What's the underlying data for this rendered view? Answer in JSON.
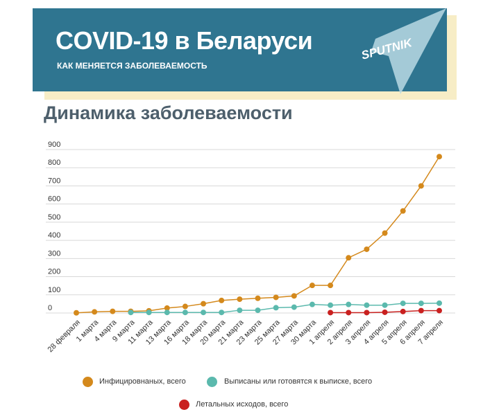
{
  "header": {
    "title": "COVID-19 в Беларуси",
    "subtitle": "КАК МЕНЯЕТСЯ ЗАБОЛЕВАЕМОСТЬ",
    "logo_text": "SPUTNIK"
  },
  "colors": {
    "banner": "#2f7590",
    "banner_shadow": "#f7edc6",
    "infected": "#d4891c",
    "recovered": "#5bb9ad",
    "deaths": "#c9201f",
    "title_text": "#4d5f6c"
  },
  "chart_data": {
    "type": "line",
    "title": "Динамика заболеваемости",
    "xlabel": "",
    "ylabel": "",
    "ylim": [
      0,
      900
    ],
    "yticks": [
      0,
      100,
      200,
      300,
      400,
      500,
      600,
      700,
      800,
      900
    ],
    "grid": true,
    "legend_position": "bottom",
    "categories": [
      "28 февраля",
      "1 марта",
      "4 марта",
      "9 марта",
      "11 марта",
      "13 марта",
      "16 марта",
      "18 марта",
      "20 марта",
      "21 марта",
      "23 марта",
      "25 марта",
      "27 марта",
      "30 марта",
      "1 апреля",
      "2 апреля",
      "3 апреля",
      "4 апреля",
      "5 апреля",
      "6 апреля",
      "7 апреля"
    ],
    "series": [
      {
        "name": "Инфицировнаных, всего",
        "color": "#d4891c",
        "values": [
          1,
          6,
          9,
          9,
          12,
          27,
          36,
          51,
          69,
          76,
          81,
          86,
          94,
          152,
          152,
          304,
          351,
          440,
          562,
          700,
          861
        ]
      },
      {
        "name": "Выписаны или готовятся к выписке, всего",
        "color": "#5bb9ad",
        "values": [
          null,
          null,
          null,
          3,
          3,
          3,
          3,
          3,
          3,
          15,
          15,
          29,
          32,
          47,
          43,
          47,
          43,
          43,
          53,
          53,
          54
        ]
      },
      {
        "name": "Летальных исходов, всего",
        "color": "#c9201f",
        "values": [
          null,
          null,
          null,
          null,
          null,
          null,
          null,
          null,
          null,
          null,
          null,
          null,
          null,
          null,
          2,
          2,
          2,
          4,
          8,
          13,
          13
        ]
      }
    ]
  }
}
